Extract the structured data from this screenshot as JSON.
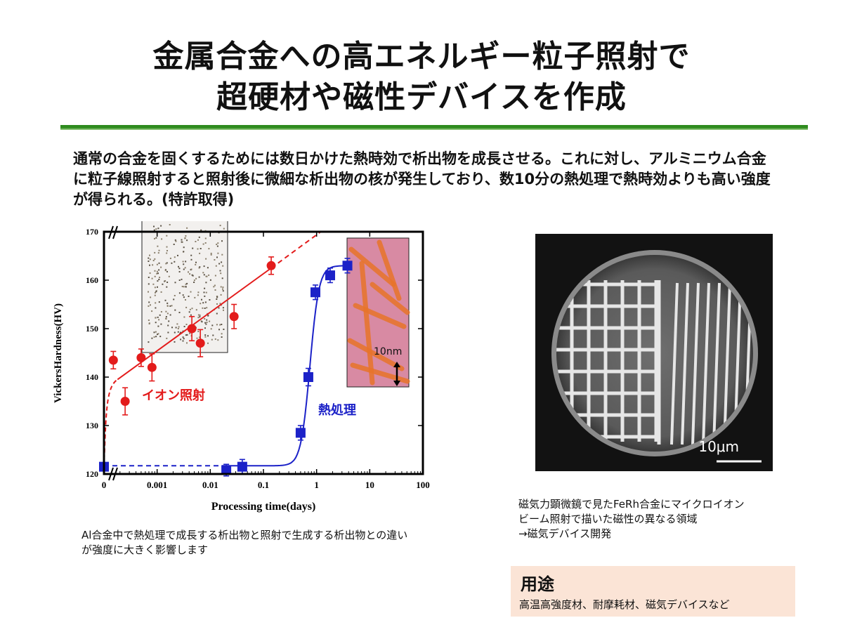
{
  "slide": {
    "title_line1": "金属合金への高エネルギー粒子照射で",
    "title_line2": "超硬材や磁性デバイスを作成",
    "intro": "通常の合金を固くするためには数日かけた熱時効で析出物を成長させる。これに対し、アルミニウム合金に粒子線照射すると照射後に微細な析出物の核が発生しており、数10分の熱処理で熱時効よりも高い強度が得られる。(特許取得)",
    "caption_left": "Al合金中で熱処理で成長する析出物と照射で生成する析出物との違いが強度に大きく影響します",
    "caption_right_line1": "磁気力顕微鏡で見たFeRh合金にマイクロイオン",
    "caption_right_line2": "ビーム照射で描いた磁性の異なる領域",
    "caption_right_line3": "→磁気デバイス開発",
    "usage_title": "用途",
    "usage_body": "高温高強度材、耐摩耗材、磁気デバイスなど",
    "accent_green": "#2e8b1e",
    "usage_bg": "#fbe4d6"
  },
  "micrograph": {
    "scale_label": "10μm"
  },
  "chart_data": {
    "type": "scatter",
    "xlabel": "Processing time(days)",
    "ylabel": "VickersHardness(HV)",
    "x_scale": "log (with 0 at origin)",
    "xlim": [
      0.0001,
      100
    ],
    "ylim": [
      120,
      170
    ],
    "x_tick_labels": [
      "0",
      "0.001",
      "0.01",
      "0.1",
      "1",
      "10",
      "100"
    ],
    "y_ticks": [
      120,
      130,
      140,
      150,
      160,
      170
    ],
    "inset_label": "10nm",
    "series": [
      {
        "name": "イオン照射",
        "color": "#e31b1b",
        "marker": "circle",
        "x": [
          0,
          0.00015,
          0.00025,
          0.0005,
          0.0008,
          0.0045,
          0.0065,
          0.028,
          0.14
        ],
        "y": [
          121.5,
          143.5,
          135,
          144,
          142,
          150,
          147,
          152.5,
          163
        ],
        "err": [
          0.5,
          1.8,
          2.8,
          1.8,
          2.8,
          2.5,
          2.8,
          2.5,
          1.8
        ]
      },
      {
        "name": "熱処理",
        "color": "#1c22c8",
        "marker": "square",
        "x": [
          0,
          0.02,
          0.04,
          0.5,
          0.7,
          0.95,
          1.8,
          3.8
        ],
        "y": [
          121.5,
          120.8,
          121.5,
          128.5,
          140,
          157.5,
          161,
          163
        ],
        "err": [
          0.5,
          1.2,
          1.5,
          1.5,
          1.8,
          1.5,
          1.5,
          1.5
        ]
      }
    ],
    "grid": false,
    "legend": "inline labels"
  }
}
